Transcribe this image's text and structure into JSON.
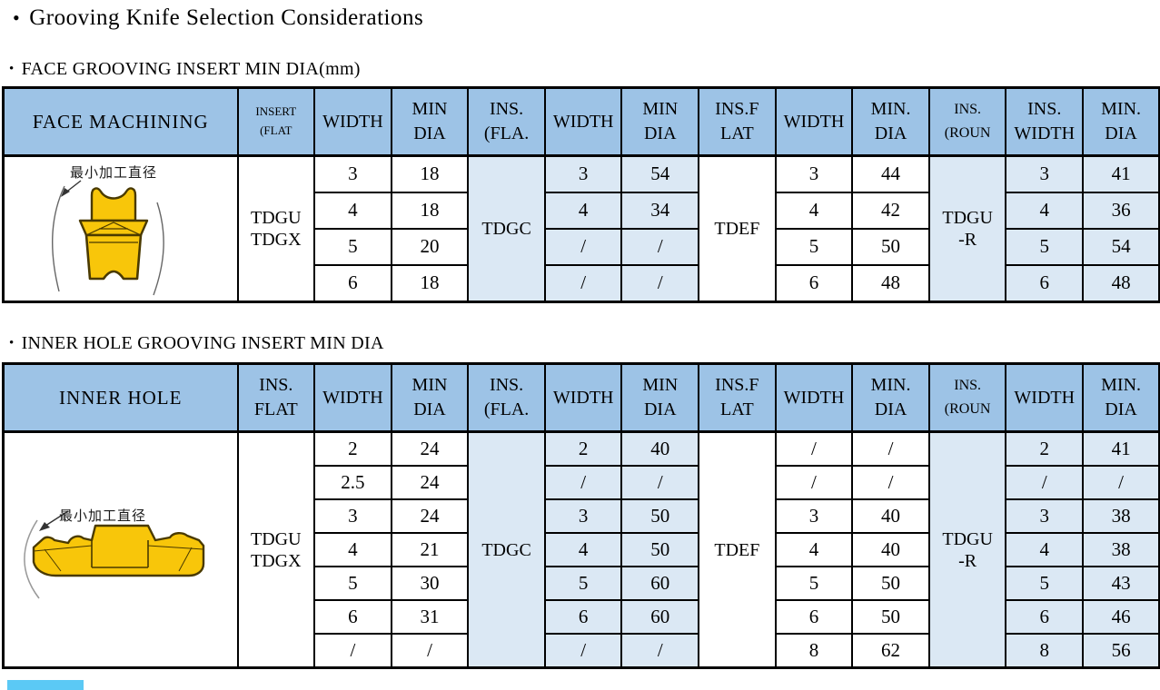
{
  "page": {
    "main_title": "Grooving Knife Selection Considerations",
    "bullet": "•"
  },
  "colors": {
    "header_blue": "#9DC3E6",
    "cell_light_blue": "#DBE8F4",
    "insert_yellow": "#F8C60A",
    "accent_sky_blue": "#5BC9F5",
    "border": "#000000"
  },
  "sections": [
    {
      "heading": "FACE GROOVING INSERT MIN DIA(mm)",
      "table": {
        "header": [
          {
            "label": "FACE MACHINING"
          },
          {
            "label": "INSERT\n(FLAT",
            "size": "sm"
          },
          {
            "label": "WIDTH"
          },
          {
            "label": "MIN\nDIA"
          },
          {
            "label": "INS.\n(FLA."
          },
          {
            "label": "WIDTH"
          },
          {
            "label": "MIN\nDIA"
          },
          {
            "label": "INS.F\nLAT"
          },
          {
            "label": "WIDTH"
          },
          {
            "label": "MIN.\nDIA"
          },
          {
            "label": "INS.\n(ROUN",
            "size": "md"
          },
          {
            "label": "INS.\nWIDTH"
          },
          {
            "label": "MIN.\nDIA"
          }
        ],
        "image_caption": "最小加工直径",
        "insert_labels": [
          "TDGU\nTDGX",
          "TDGC",
          "TDEF",
          "TDGU\n-R"
        ],
        "shaded_groups": [
          1,
          3
        ],
        "rows": [
          [
            "3",
            "18",
            "3",
            "54",
            "3",
            "44",
            "3",
            "41"
          ],
          [
            "4",
            "18",
            "4",
            "34",
            "4",
            "42",
            "4",
            "36"
          ],
          [
            "5",
            "20",
            "/",
            "/",
            "5",
            "50",
            "5",
            "54"
          ],
          [
            "6",
            "18",
            "/",
            "/",
            "6",
            "48",
            "6",
            "48"
          ]
        ]
      }
    },
    {
      "heading": "INNER HOLE GROOVING INSERT MIN DIA",
      "table": {
        "header": [
          {
            "label": "INNER HOLE"
          },
          {
            "label": "INS.\nFLAT"
          },
          {
            "label": "WIDTH"
          },
          {
            "label": "MIN\nDIA"
          },
          {
            "label": "INS.\n(FLA."
          },
          {
            "label": "WIDTH"
          },
          {
            "label": "MIN\nDIA"
          },
          {
            "label": "INS.F\nLAT"
          },
          {
            "label": "WIDTH"
          },
          {
            "label": "MIN.\nDIA"
          },
          {
            "label": "INS.\n(ROUN",
            "size": "md"
          },
          {
            "label": "WIDTH"
          },
          {
            "label": "MIN.\nDIA"
          }
        ],
        "image_caption": "最小加工直径",
        "insert_labels": [
          "TDGU\nTDGX",
          "TDGC",
          "TDEF",
          "TDGU\n-R"
        ],
        "shaded_groups": [
          1,
          3
        ],
        "rows": [
          [
            "2",
            "24",
            "2",
            "40",
            "/",
            "/",
            "2",
            "41"
          ],
          [
            "2.5",
            "24",
            "/",
            "/",
            "/",
            "/",
            "/",
            "/"
          ],
          [
            "3",
            "24",
            "3",
            "50",
            "3",
            "40",
            "3",
            "38"
          ],
          [
            "4",
            "21",
            "4",
            "50",
            "4",
            "40",
            "4",
            "38"
          ],
          [
            "5",
            "30",
            "5",
            "60",
            "5",
            "50",
            "5",
            "43"
          ],
          [
            "6",
            "31",
            "6",
            "60",
            "6",
            "50",
            "6",
            "46"
          ],
          [
            "/",
            "/",
            "/",
            "/",
            "8",
            "62",
            "8",
            "56"
          ]
        ]
      }
    }
  ]
}
